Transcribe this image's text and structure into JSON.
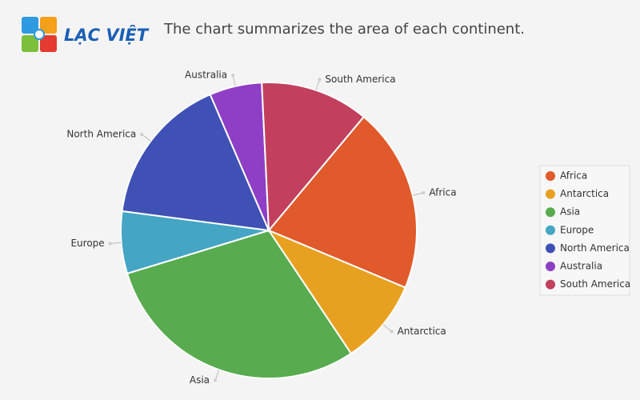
{
  "logo": "LẠC VIỆT",
  "chart_data": {
    "type": "pie",
    "title": "The chart summarizes the area of each continent.",
    "categories": [
      "Africa",
      "Antarctica",
      "Asia",
      "Europe",
      "North America",
      "Australia",
      "South America"
    ],
    "values": [
      30.4,
      14,
      44.6,
      10.2,
      24.7,
      8.6,
      17.8
    ],
    "colors": [
      "#e05a2b",
      "#e8a020",
      "#58ac4f",
      "#45a5c5",
      "#3f51b5",
      "#8e3fc5",
      "#c2405e"
    ],
    "legend": "right"
  }
}
